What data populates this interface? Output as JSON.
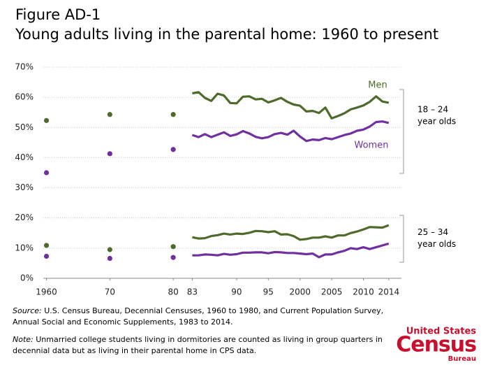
{
  "chart_data": {
    "type": "line",
    "figure": "Figure AD-1",
    "title": "Young adults living in the parental home: 1960 to present",
    "dot_x": [
      1960,
      1970,
      1980
    ],
    "x": [
      1983,
      1984,
      1985,
      1986,
      1987,
      1988,
      1989,
      1990,
      1991,
      1992,
      1993,
      1994,
      1995,
      1996,
      1997,
      1998,
      1999,
      2000,
      2001,
      2002,
      2003,
      2004,
      2005,
      2006,
      2007,
      2008,
      2009,
      2010,
      2011,
      2012,
      2013,
      2014
    ],
    "series": [
      {
        "name": "Men",
        "color": "#4e6b2b",
        "dot_values": [
          52.3,
          54.3,
          54.3
        ],
        "values": [
          61.3,
          61.7,
          59.8,
          58.8,
          61.2,
          60.6,
          58.1,
          58.0,
          60.2,
          60.3,
          59.3,
          59.5,
          58.3,
          59.0,
          59.8,
          58.5,
          57.6,
          57.2,
          55.3,
          55.5,
          54.8,
          56.6,
          53.0,
          53.8,
          54.7,
          56.0,
          56.6,
          57.3,
          58.5,
          60.3,
          58.6,
          58.2
        ]
      },
      {
        "name": "Women",
        "color": "#7030a0",
        "dot_values": [
          35.0,
          41.3,
          42.7
        ],
        "values": [
          47.5,
          46.8,
          47.8,
          46.8,
          47.6,
          48.4,
          47.2,
          47.7,
          48.8,
          48.0,
          46.9,
          46.4,
          46.8,
          47.8,
          48.2,
          47.6,
          48.9,
          47.0,
          45.5,
          46.0,
          45.8,
          46.5,
          46.1,
          46.8,
          47.5,
          48.0,
          48.9,
          49.3,
          50.3,
          51.8,
          52.0,
          51.5
        ]
      },
      {
        "color": "#4e6b2b",
        "dot_values": [
          10.9,
          9.5,
          10.5
        ],
        "values": [
          13.6,
          13.2,
          13.3,
          14.0,
          14.3,
          14.8,
          14.5,
          14.8,
          14.7,
          15.1,
          15.7,
          15.6,
          15.3,
          15.6,
          14.5,
          14.6,
          14.0,
          12.8,
          13.0,
          13.5,
          13.5,
          13.9,
          13.5,
          14.2,
          14.2,
          15.0,
          15.5,
          16.2,
          17.0,
          16.9,
          16.8,
          17.6
        ]
      },
      {
        "color": "#7030a0",
        "dot_values": [
          7.3,
          6.6,
          6.9
        ],
        "values": [
          7.6,
          7.6,
          7.9,
          7.8,
          7.6,
          8.1,
          7.8,
          8.0,
          8.5,
          8.5,
          8.6,
          8.6,
          8.3,
          8.7,
          8.6,
          8.4,
          8.4,
          8.2,
          8.0,
          8.2,
          7.0,
          7.9,
          7.9,
          8.6,
          9.1,
          10.0,
          9.7,
          10.3,
          9.7,
          10.3,
          10.9,
          11.5
        ]
      }
    ],
    "xlim": [
      1959.5,
      2016
    ],
    "xticks": [
      1960,
      {
        "value": 1970,
        "label": "70"
      },
      {
        "value": 1980,
        "label": "80"
      },
      {
        "value": 1983,
        "label": "83"
      },
      {
        "value": 1990,
        "label": "90"
      },
      {
        "value": 1995,
        "label": "95"
      },
      2000,
      2005,
      2010,
      2014
    ],
    "ylim": [
      0,
      70
    ],
    "yticks": [
      {
        "value": 0,
        "label": "0%"
      },
      {
        "value": 10,
        "label": "10%"
      },
      {
        "value": 20,
        "label": "20%"
      },
      {
        "value": 30,
        "label": "30%"
      },
      {
        "value": 40,
        "label": "40%"
      },
      {
        "value": 50,
        "label": "50%"
      },
      {
        "value": 60,
        "label": "60%"
      },
      {
        "value": 70,
        "label": "70%"
      }
    ],
    "grid": true,
    "groups": [
      {
        "lines": [
          "18 – 24",
          "year olds"
        ]
      },
      {
        "lines": [
          "25 – 34",
          "year olds"
        ]
      }
    ],
    "source": {
      "label": "Source:",
      "lines": [
        "U.S. Census Bureau, Decennial Censuses, 1960 to 1980, and Current Population Survey,",
        "Annual Social and Economic Supplements, 1983 to 2014."
      ]
    },
    "note": {
      "label": "Note:",
      "lines": [
        "Unmarried college students living in dormitories are counted as living in group quarters in",
        "decennial data but as living in their parental home in CPS data."
      ]
    },
    "logo": {
      "top": "United States",
      "main": "Census",
      "bottom": "Bureau"
    }
  }
}
